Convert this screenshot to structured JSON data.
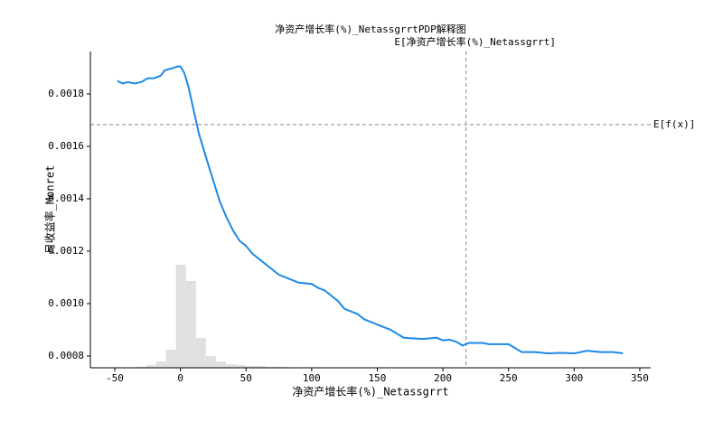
{
  "chart_data": {
    "type": "line",
    "title": "净资产增长率(%)_NetassgrrtPDP解释图",
    "xlabel": "净资产增长率(%)_Netassgrrt",
    "ylabel": "月收益率_Monret",
    "color": "#1e88e5",
    "x": [
      -48,
      -44,
      -40,
      -35,
      -30,
      -25,
      -20,
      -15,
      -12,
      -5,
      -2,
      0,
      3,
      6,
      10,
      14,
      20,
      25,
      30,
      35,
      40,
      45,
      50,
      55,
      60,
      65,
      70,
      75,
      80,
      85,
      90,
      100,
      105,
      110,
      115,
      120,
      125,
      130,
      135,
      140,
      145,
      150,
      160,
      170,
      175,
      185,
      195,
      200,
      205,
      210,
      215,
      220,
      230,
      235,
      250,
      255,
      260,
      270,
      280,
      290,
      300,
      310,
      320,
      330,
      337
    ],
    "values": [
      0.00185,
      0.00184,
      0.001845,
      0.00184,
      0.001845,
      0.00186,
      0.00186,
      0.00187,
      0.00189,
      0.0019,
      0.001905,
      0.001905,
      0.00188,
      0.00183,
      0.00174,
      0.00165,
      0.00155,
      0.00147,
      0.00139,
      0.00133,
      0.00128,
      0.00124,
      0.00122,
      0.00119,
      0.00117,
      0.00115,
      0.00113,
      0.00111,
      0.0011,
      0.00109,
      0.00108,
      0.001075,
      0.00106,
      0.00105,
      0.00103,
      0.00101,
      0.00098,
      0.00097,
      0.00096,
      0.00094,
      0.00093,
      0.00092,
      0.0009,
      0.00087,
      0.000868,
      0.000865,
      0.00087,
      0.00086,
      0.000862,
      0.000855,
      0.00084,
      0.00085,
      0.00085,
      0.000845,
      0.000845,
      0.00083,
      0.000815,
      0.000815,
      0.00081,
      0.000812,
      0.00081,
      0.00082,
      0.000815,
      0.000815,
      0.00081
    ],
    "histogram": {
      "color": "#e0e0e0",
      "bins": [
        -33.8,
        -26.2,
        -18.6,
        -11,
        -3.4,
        4.2,
        11.8,
        19.4,
        27,
        34.6,
        42.2,
        49.8,
        57.4,
        65,
        72.6,
        80.2
      ],
      "counts": [
        1,
        3,
        7,
        20,
        114,
        96,
        33,
        13,
        7,
        4,
        3,
        2,
        2,
        1,
        1
      ]
    },
    "reference_lines": [
      {
        "axis": "y",
        "value": 0.001683,
        "label": "E[f(x)]"
      },
      {
        "axis": "x",
        "value": 217.6,
        "label": "E[净资产增长率(%)_Netassgrrt]"
      }
    ],
    "xlim": [
      -68.6,
      358.3
    ],
    "ylim": [
      0.000755,
      0.001962
    ],
    "xticks": [
      -50,
      0,
      50,
      100,
      150,
      200,
      250,
      300,
      350
    ],
    "yticks": [
      0.0008,
      {
        "value": 0.001,
        "label": "0.0010"
      },
      0.0012,
      0.0014,
      0.0016,
      0.0018
    ]
  }
}
